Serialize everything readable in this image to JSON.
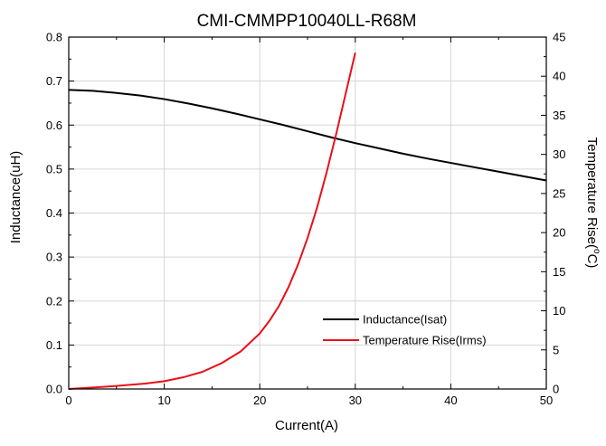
{
  "chart_data": {
    "type": "line",
    "title": "CMI-CMMPP10040LL-R68M",
    "xlabel": "Current(A)",
    "ylabel": "Inductance(uH)",
    "y2label_prefix": "Temperature Rise(",
    "y2label_sup": "o",
    "y2label_suffix": "C)",
    "xlim": [
      0,
      50
    ],
    "ylim": [
      0,
      0.8
    ],
    "y2lim": [
      0,
      45
    ],
    "xticks": [
      0,
      10,
      20,
      30,
      40,
      50
    ],
    "yticks": [
      0.0,
      0.1,
      0.2,
      0.3,
      0.4,
      0.5,
      0.6,
      0.7,
      0.8
    ],
    "yticks_labels": [
      "0.0",
      "0.1",
      "0.2",
      "0.3",
      "0.4",
      "0.5",
      "0.6",
      "0.7",
      "0.8"
    ],
    "y2ticks": [
      0,
      5,
      10,
      15,
      20,
      25,
      30,
      35,
      40,
      45
    ],
    "grid": true,
    "legend": "bottom-right",
    "series": [
      {
        "name": "Inductance(Isat)",
        "axis": "left",
        "color": "#000000",
        "x": [
          0,
          2.5,
          5,
          7.5,
          10,
          12.5,
          15,
          17.5,
          20,
          22.5,
          25,
          27.5,
          30,
          32.5,
          35,
          37.5,
          40,
          42.5,
          45,
          47.5,
          50
        ],
        "y": [
          0.68,
          0.678,
          0.673,
          0.667,
          0.659,
          0.649,
          0.638,
          0.626,
          0.613,
          0.6,
          0.586,
          0.572,
          0.559,
          0.547,
          0.535,
          0.524,
          0.514,
          0.504,
          0.494,
          0.484,
          0.474
        ]
      },
      {
        "name": "Temperature Rise(Irms)",
        "axis": "right",
        "color": "#e8101a",
        "x": [
          0,
          4,
          8,
          10,
          12,
          14,
          16,
          18,
          20,
          21,
          22,
          23,
          24,
          25,
          26,
          27,
          28,
          29,
          30
        ],
        "y": [
          0,
          0.3,
          0.7,
          1.0,
          1.5,
          2.2,
          3.3,
          4.8,
          7.1,
          8.7,
          10.6,
          13.0,
          15.9,
          19.3,
          23.2,
          27.7,
          32.6,
          37.8,
          43.0
        ]
      }
    ]
  }
}
